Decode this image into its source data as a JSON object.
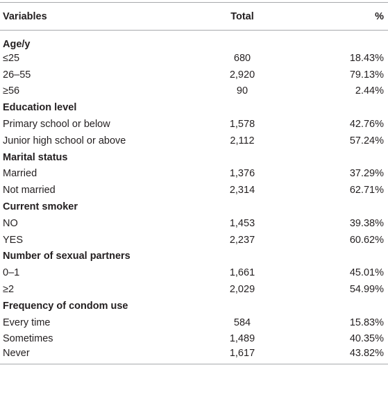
{
  "table": {
    "header": [
      "Variables",
      "Total",
      "%"
    ],
    "rows": [
      [
        "Age/y"
      ],
      [
        "≤25",
        "680",
        "18.43%"
      ],
      [
        "26–55",
        "2,920",
        "79.13%"
      ],
      [
        "≥56",
        "90",
        "2.44%"
      ],
      [
        "Education level"
      ],
      [
        "Primary school or below",
        "1,578",
        "42.76%"
      ],
      [
        "Junior high school or above",
        "2,112",
        "57.24%"
      ],
      [
        "Marital status"
      ],
      [
        "Married",
        "1,376",
        "37.29%"
      ],
      [
        "Not married",
        "2,314",
        "62.71%"
      ],
      [
        "Current smoker"
      ],
      [
        "NO",
        "1,453",
        "39.38%"
      ],
      [
        "YES",
        "2,237",
        "60.62%"
      ],
      [
        "Number of sexual partners"
      ],
      [
        "0–1",
        "1,661",
        "45.01%"
      ],
      [
        "≥2",
        "2,029",
        "54.99%"
      ],
      [
        "Frequency of condom use"
      ],
      [
        "Every time",
        "584",
        "15.83%"
      ],
      [
        "Sometimes",
        "1,489",
        "40.35%"
      ],
      [
        "Never",
        "1,617",
        "43.82%"
      ]
    ]
  }
}
